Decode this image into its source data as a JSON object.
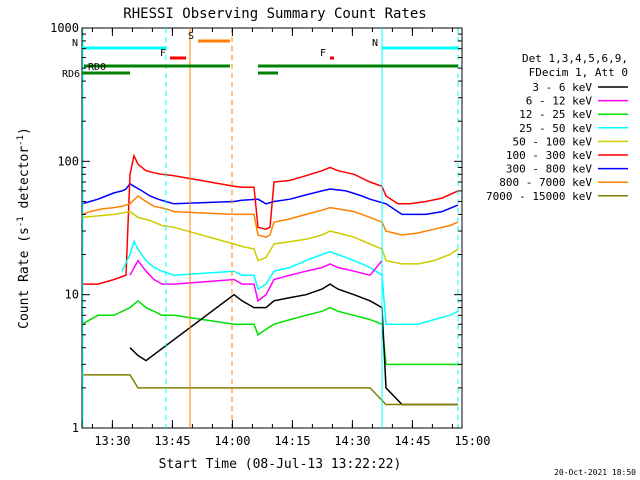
{
  "chart_data": {
    "type": "line",
    "title": "RHESSI Observing Summary Count Rates",
    "xlabel": "Start Time (08-Jul-13 13:22:22)",
    "ylabel_parts": [
      "Count Rate (s",
      "-1",
      " detector",
      "-1",
      ")"
    ],
    "y_scale": "log",
    "ylim": [
      1,
      1000
    ],
    "y_ticks": [
      {
        "v": 1,
        "label": "1"
      },
      {
        "v": 10,
        "label": "10"
      },
      {
        "v": 100,
        "label": "100"
      },
      {
        "v": 1000,
        "label": "1000"
      }
    ],
    "xlim_minutes": [
      0,
      95
    ],
    "x_ticks": [
      {
        "m": 0,
        "label": ""
      },
      {
        "m": 7.6,
        "label": "13:30"
      },
      {
        "m": 22.6,
        "label": "13:45"
      },
      {
        "m": 37.6,
        "label": "14:00"
      },
      {
        "m": 52.6,
        "label": "14:15"
      },
      {
        "m": 67.6,
        "label": "14:30"
      },
      {
        "m": 82.6,
        "label": "14:45"
      },
      {
        "m": 97.6,
        "label": "15:00"
      }
    ],
    "legend_header": [
      "Det 1,3,4,5,6,9,",
      "FDecim 1, Att 0"
    ],
    "legend": [
      {
        "label": "3 - 6 keV",
        "color": "#000000"
      },
      {
        "label": "6 - 12 keV",
        "color": "#ff00ff"
      },
      {
        "label": "12 - 25 keV",
        "color": "#00e000"
      },
      {
        "label": "25 - 50 keV",
        "color": "#00ffff"
      },
      {
        "label": "50 - 100 keV",
        "color": "#cccc00"
      },
      {
        "label": "100 - 300 keV",
        "color": "#ff0000"
      },
      {
        "label": "300 - 800 keV",
        "color": "#0000ff"
      },
      {
        "label": "800 - 7000 keV",
        "color": "#ff8000"
      },
      {
        "label": "7000 - 15000 keV",
        "color": "#808000"
      }
    ],
    "segments": [
      [
        0,
        13
      ],
      [
        38,
        95
      ]
    ],
    "series": [
      {
        "color": "#0000ff",
        "values": [
          [
            0,
            48
          ],
          [
            2,
            50
          ],
          [
            4,
            52
          ],
          [
            6,
            55
          ],
          [
            8,
            58
          ],
          [
            10,
            60
          ],
          [
            11,
            62
          ],
          [
            12,
            68
          ],
          [
            13,
            65
          ],
          [
            15,
            60
          ],
          [
            17,
            55
          ],
          [
            19,
            52
          ],
          [
            21,
            50
          ],
          [
            23,
            48
          ],
          [
            38,
            50
          ],
          [
            40,
            51
          ],
          [
            44,
            52
          ],
          [
            46,
            48
          ],
          [
            48,
            50
          ],
          [
            52,
            52
          ],
          [
            56,
            56
          ],
          [
            60,
            60
          ],
          [
            62,
            62
          ],
          [
            66,
            60
          ],
          [
            70,
            55
          ],
          [
            72,
            52
          ],
          [
            76,
            48
          ],
          [
            80,
            40
          ],
          [
            82,
            40
          ],
          [
            86,
            40
          ],
          [
            90,
            42
          ],
          [
            94,
            47
          ]
        ]
      },
      {
        "color": "#ff0000",
        "values": [
          [
            0,
            12
          ],
          [
            4,
            12
          ],
          [
            8,
            13
          ],
          [
            11,
            14
          ],
          [
            12,
            80
          ],
          [
            13,
            110
          ],
          [
            14,
            95
          ],
          [
            16,
            85
          ],
          [
            18,
            82
          ],
          [
            20,
            80
          ],
          [
            23,
            78
          ],
          [
            38,
            65
          ],
          [
            40,
            64
          ],
          [
            43,
            64
          ],
          [
            44,
            32
          ],
          [
            46,
            31
          ],
          [
            47,
            32
          ],
          [
            48,
            70
          ],
          [
            52,
            72
          ],
          [
            56,
            78
          ],
          [
            60,
            85
          ],
          [
            62,
            90
          ],
          [
            64,
            85
          ],
          [
            68,
            80
          ],
          [
            72,
            70
          ],
          [
            75,
            65
          ],
          [
            76,
            55
          ],
          [
            79,
            48
          ],
          [
            82,
            48
          ],
          [
            86,
            50
          ],
          [
            90,
            53
          ],
          [
            94,
            60
          ]
        ]
      },
      {
        "color": "#ff8000",
        "values": [
          [
            0,
            40
          ],
          [
            2,
            42
          ],
          [
            5,
            44
          ],
          [
            8,
            45
          ],
          [
            10,
            46
          ],
          [
            12,
            48
          ],
          [
            14,
            55
          ],
          [
            16,
            50
          ],
          [
            18,
            46
          ],
          [
            21,
            44
          ],
          [
            23,
            42
          ],
          [
            38,
            40
          ],
          [
            40,
            40
          ],
          [
            43,
            40
          ],
          [
            44,
            28
          ],
          [
            46,
            27
          ],
          [
            47,
            28
          ],
          [
            48,
            35
          ],
          [
            52,
            37
          ],
          [
            56,
            40
          ],
          [
            60,
            43
          ],
          [
            62,
            45
          ],
          [
            64,
            44
          ],
          [
            68,
            42
          ],
          [
            72,
            38
          ],
          [
            75,
            35
          ],
          [
            76,
            30
          ],
          [
            80,
            28
          ],
          [
            84,
            29
          ],
          [
            88,
            31
          ],
          [
            92,
            33
          ],
          [
            94,
            35
          ]
        ]
      },
      {
        "color": "#cccc00",
        "values": [
          [
            0,
            38
          ],
          [
            4,
            39
          ],
          [
            8,
            40
          ],
          [
            12,
            42
          ],
          [
            14,
            38
          ],
          [
            17,
            36
          ],
          [
            20,
            33
          ],
          [
            23,
            32
          ],
          [
            38,
            24
          ],
          [
            40,
            23
          ],
          [
            43,
            22
          ],
          [
            44,
            18
          ],
          [
            46,
            19
          ],
          [
            48,
            24
          ],
          [
            52,
            25
          ],
          [
            56,
            26
          ],
          [
            60,
            28
          ],
          [
            62,
            30
          ],
          [
            64,
            29
          ],
          [
            68,
            27
          ],
          [
            72,
            24
          ],
          [
            75,
            22
          ],
          [
            76,
            18
          ],
          [
            80,
            17
          ],
          [
            84,
            17
          ],
          [
            88,
            18
          ],
          [
            92,
            20
          ],
          [
            94,
            22
          ]
        ]
      },
      {
        "color": "#00ffff",
        "values": [
          [
            10,
            15
          ],
          [
            12,
            20
          ],
          [
            13,
            25
          ],
          [
            14,
            22
          ],
          [
            16,
            18
          ],
          [
            18,
            16
          ],
          [
            20,
            15
          ],
          [
            23,
            14
          ],
          [
            38,
            15
          ],
          [
            40,
            14
          ],
          [
            43,
            14
          ],
          [
            44,
            11
          ],
          [
            46,
            12
          ],
          [
            48,
            15
          ],
          [
            52,
            16
          ],
          [
            56,
            18
          ],
          [
            60,
            20
          ],
          [
            62,
            21
          ],
          [
            64,
            20
          ],
          [
            68,
            18
          ],
          [
            72,
            16
          ],
          [
            75,
            14
          ],
          [
            76,
            6
          ],
          [
            80,
            6
          ],
          [
            84,
            6
          ],
          [
            88,
            6.5
          ],
          [
            92,
            7
          ],
          [
            94,
            7.5
          ]
        ]
      },
      {
        "color": "#ff00ff",
        "values": [
          [
            12,
            14
          ],
          [
            14,
            18
          ],
          [
            16,
            15
          ],
          [
            18,
            13
          ],
          [
            20,
            12
          ],
          [
            23,
            12
          ],
          [
            38,
            13
          ],
          [
            40,
            12
          ],
          [
            43,
            12
          ],
          [
            44,
            9
          ],
          [
            46,
            10
          ],
          [
            48,
            13
          ],
          [
            52,
            14
          ],
          [
            56,
            15
          ],
          [
            60,
            16
          ],
          [
            62,
            17
          ],
          [
            64,
            16
          ],
          [
            68,
            15
          ],
          [
            72,
            14
          ],
          [
            75,
            18
          ]
        ]
      },
      {
        "color": "#00e000",
        "values": [
          [
            0,
            6
          ],
          [
            4,
            7
          ],
          [
            8,
            7
          ],
          [
            12,
            8
          ],
          [
            14,
            9
          ],
          [
            16,
            8
          ],
          [
            18,
            7.5
          ],
          [
            20,
            7
          ],
          [
            23,
            7
          ],
          [
            38,
            6
          ],
          [
            40,
            6
          ],
          [
            43,
            6
          ],
          [
            44,
            5
          ],
          [
            46,
            5.5
          ],
          [
            48,
            6
          ],
          [
            52,
            6.5
          ],
          [
            56,
            7
          ],
          [
            60,
            7.5
          ],
          [
            62,
            8
          ],
          [
            64,
            7.5
          ],
          [
            68,
            7
          ],
          [
            72,
            6.5
          ],
          [
            75,
            6
          ],
          [
            76,
            3
          ],
          [
            80,
            3
          ],
          [
            84,
            3
          ],
          [
            88,
            3
          ],
          [
            92,
            3
          ],
          [
            94,
            3
          ]
        ]
      },
      {
        "color": "#000000",
        "values": [
          [
            12,
            4
          ],
          [
            14,
            3.5
          ],
          [
            16,
            3.2
          ],
          [
            38,
            10
          ],
          [
            40,
            9
          ],
          [
            43,
            8
          ],
          [
            46,
            8
          ],
          [
            48,
            9
          ],
          [
            52,
            9.5
          ],
          [
            56,
            10
          ],
          [
            60,
            11
          ],
          [
            62,
            12
          ],
          [
            64,
            11
          ],
          [
            68,
            10
          ],
          [
            72,
            9
          ],
          [
            75,
            8
          ],
          [
            76,
            2
          ],
          [
            80,
            1.5
          ],
          [
            84,
            1.5
          ],
          [
            88,
            1.5
          ],
          [
            92,
            1.5
          ],
          [
            94,
            1.5
          ]
        ]
      },
      {
        "color": "#808000",
        "values": [
          [
            0,
            2.5
          ],
          [
            4,
            2.5
          ],
          [
            8,
            2.5
          ],
          [
            12,
            2.5
          ],
          [
            14,
            2
          ],
          [
            16,
            2
          ],
          [
            20,
            2
          ],
          [
            23,
            2
          ],
          [
            38,
            2
          ],
          [
            43,
            2
          ],
          [
            48,
            2
          ],
          [
            52,
            2
          ],
          [
            56,
            2
          ],
          [
            60,
            2
          ],
          [
            64,
            2
          ],
          [
            68,
            2
          ],
          [
            72,
            2
          ],
          [
            76,
            1.5
          ],
          [
            80,
            1.5
          ],
          [
            84,
            1.5
          ],
          [
            88,
            1.5
          ],
          [
            92,
            1.5
          ],
          [
            94,
            1.5
          ]
        ]
      }
    ],
    "annotations": {
      "markers": [
        {
          "label": "N",
          "color": "#00ffff",
          "m": [
            0,
            21
          ],
          "level": "top"
        },
        {
          "label": "N",
          "color": "#00ffff",
          "m": [
            75,
            94
          ],
          "level": "top"
        },
        {
          "label": "F",
          "color": "#ff0000",
          "m": [
            22,
            26
          ],
          "level": "mid"
        },
        {
          "label": "F",
          "color": "#ff0000",
          "m": [
            62,
            63
          ],
          "level": "mid"
        },
        {
          "label": "S",
          "color": "#ff8000",
          "m": [
            29,
            37
          ],
          "level": "upper"
        }
      ],
      "rd0_label": "RD0",
      "rd6_label": "RD6",
      "vlines": [
        {
          "m": 0.2,
          "color": "#00ffff",
          "dash": false
        },
        {
          "m": 21,
          "color": "#00ffff",
          "dash": true
        },
        {
          "m": 27,
          "color": "#ff8000",
          "dash": false
        },
        {
          "m": 37.5,
          "color": "#ff8000",
          "dash": true
        },
        {
          "m": 75,
          "color": "#00ffff",
          "dash": false
        },
        {
          "m": 94,
          "color": "#00ffff",
          "dash": true
        }
      ]
    },
    "grid": false,
    "legend_placement": "right",
    "footer_date": "20-Oct-2021 18:50"
  }
}
